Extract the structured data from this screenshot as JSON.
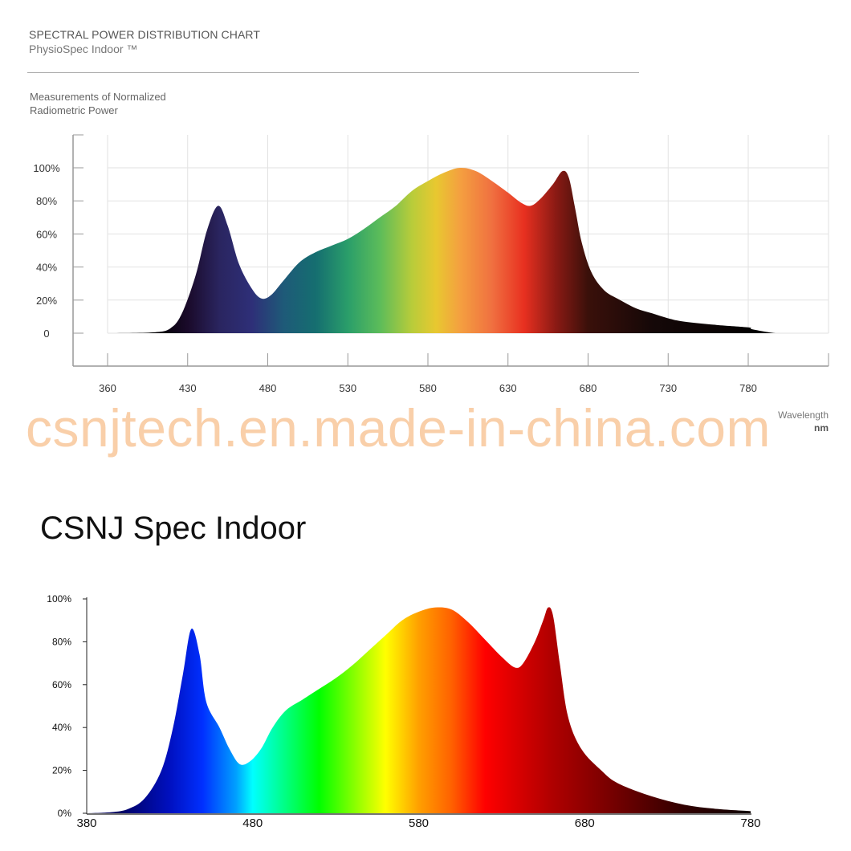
{
  "header": {
    "title": "SPECTRAL POWER DISTRIBUTION CHART",
    "subtitle": "PhysioSpec Indoor ™"
  },
  "watermark": "csnjtech.en.made-in-china.com",
  "chart_data": [
    {
      "type": "area",
      "title": "",
      "ylabel_lines": [
        "Measurements of Normalized",
        "Radiometric Power"
      ],
      "xlabel_lines": [
        "Wavelength",
        "nm"
      ],
      "x_ticks": [
        360,
        430,
        480,
        530,
        580,
        630,
        680,
        730,
        780
      ],
      "y_ticks": [
        "0",
        "20%",
        "40%",
        "60%",
        "80%",
        "100%"
      ],
      "ylim": [
        0,
        100
      ],
      "grid": true,
      "x": [
        360,
        400,
        415,
        425,
        435,
        442,
        449,
        455,
        462,
        470,
        476,
        482,
        490,
        500,
        510,
        520,
        530,
        540,
        550,
        560,
        570,
        580,
        590,
        600,
        610,
        620,
        630,
        638,
        644,
        650,
        658,
        664,
        668,
        672,
        676,
        682,
        690,
        700,
        710,
        720,
        730,
        740,
        760,
        780,
        782,
        790,
        797
      ],
      "y": [
        0,
        0.5,
        3,
        12,
        35,
        62,
        77,
        65,
        42,
        27,
        21,
        23,
        32,
        43,
        49,
        53,
        57,
        63,
        70,
        77,
        86,
        92,
        97,
        100,
        98,
        92,
        85,
        79,
        77,
        81,
        90,
        98,
        94,
        75,
        55,
        37,
        26,
        20,
        15,
        12,
        9,
        7,
        5,
        3.5,
        2.5,
        1,
        0
      ],
      "spectrum_colors": [
        [
          400,
          "#000000"
        ],
        [
          430,
          "#1a0a2a"
        ],
        [
          450,
          "#2a2560"
        ],
        [
          470,
          "#2e2f78"
        ],
        [
          490,
          "#1e5a78"
        ],
        [
          510,
          "#156e70"
        ],
        [
          530,
          "#2a9e6a"
        ],
        [
          550,
          "#5cbc5a"
        ],
        [
          570,
          "#b8cc3a"
        ],
        [
          585,
          "#e8c830"
        ],
        [
          600,
          "#f4a040"
        ],
        [
          620,
          "#f07040"
        ],
        [
          640,
          "#e83020"
        ],
        [
          660,
          "#8a1a14"
        ],
        [
          680,
          "#3a100a"
        ],
        [
          720,
          "#150808"
        ],
        [
          800,
          "#000000"
        ]
      ]
    },
    {
      "type": "area",
      "title": "CSNJ  Spec Indoor",
      "x_ticks": [
        380,
        480,
        580,
        680,
        780
      ],
      "y_ticks": [
        "0%",
        "20%",
        "40%",
        "60%",
        "80%",
        "100%"
      ],
      "ylim": [
        0,
        100
      ],
      "xlim": [
        380,
        780
      ],
      "grid": false,
      "x": [
        380,
        395,
        405,
        415,
        425,
        432,
        438,
        443,
        448,
        452,
        460,
        466,
        472,
        478,
        485,
        492,
        500,
        510,
        520,
        530,
        540,
        550,
        560,
        570,
        580,
        590,
        600,
        610,
        620,
        630,
        638,
        643,
        650,
        655,
        658,
        661,
        665,
        670,
        678,
        690,
        700,
        720,
        740,
        760,
        780
      ],
      "y": [
        0,
        0.5,
        2,
        7,
        20,
        40,
        65,
        86,
        74,
        52,
        40,
        30,
        23,
        24,
        30,
        40,
        48,
        53,
        58,
        63,
        69,
        76,
        83,
        90,
        94,
        96,
        95,
        89,
        81,
        73,
        68,
        70,
        80,
        90,
        96,
        92,
        70,
        45,
        30,
        20,
        14,
        8,
        4,
        2,
        1
      ],
      "spectrum_colors": [
        [
          400,
          "#000060"
        ],
        [
          430,
          "#0010c0"
        ],
        [
          450,
          "#0030ff"
        ],
        [
          470,
          "#00a0ff"
        ],
        [
          480,
          "#00ffff"
        ],
        [
          500,
          "#00ff80"
        ],
        [
          520,
          "#00ff00"
        ],
        [
          540,
          "#80ff00"
        ],
        [
          560,
          "#ffff00"
        ],
        [
          580,
          "#ffa000"
        ],
        [
          600,
          "#ff6000"
        ],
        [
          620,
          "#ff0000"
        ],
        [
          660,
          "#b00000"
        ],
        [
          700,
          "#700000"
        ],
        [
          740,
          "#300000"
        ],
        [
          780,
          "#100000"
        ]
      ]
    }
  ]
}
